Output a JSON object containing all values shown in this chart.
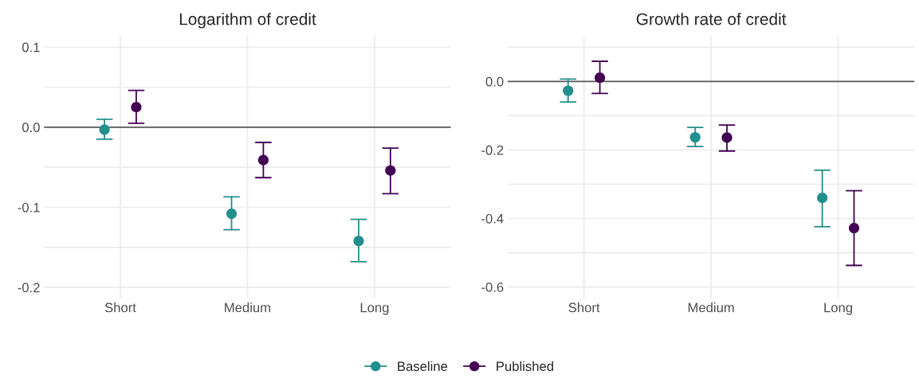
{
  "chart_data": [
    {
      "type": "scatter",
      "title": "Logarithm of credit",
      "categories": [
        "Short",
        "Medium",
        "Long"
      ],
      "ylim": [
        -0.214,
        0.114
      ],
      "yticks": [
        {
          "value": -0.2,
          "label": "-0.2"
        },
        {
          "value": -0.15,
          "label": null
        },
        {
          "value": -0.1,
          "label": "-0.1"
        },
        {
          "value": -0.05,
          "label": null
        },
        {
          "value": 0.0,
          "label": "0.0"
        },
        {
          "value": 0.05,
          "label": null
        },
        {
          "value": 0.1,
          "label": "0.1"
        }
      ],
      "grid": true,
      "legend": "bottom",
      "marker": "circle",
      "ref_lines": [
        {
          "axis": "y",
          "value": 0,
          "color": "#595959"
        }
      ],
      "series": [
        {
          "name": "Baseline",
          "color": "#21908c",
          "values": [
            -0.003,
            -0.108,
            -0.142
          ],
          "errors": [
            [
              -0.015,
              0.01
            ],
            [
              -0.128,
              -0.087
            ],
            [
              -0.168,
              -0.115
            ]
          ]
        },
        {
          "name": "Published",
          "color": "#440154",
          "values": [
            0.025,
            -0.041,
            -0.054
          ],
          "errors": [
            [
              0.005,
              0.046
            ],
            [
              -0.063,
              -0.019
            ],
            [
              -0.083,
              -0.026
            ]
          ]
        }
      ]
    },
    {
      "type": "scatter",
      "title": "Growth rate of credit",
      "categories": [
        "Short",
        "Medium",
        "Long"
      ],
      "ylim": [
        -0.634,
        0.133
      ],
      "yticks": [
        {
          "value": -0.6,
          "label": "-0.6"
        },
        {
          "value": -0.5,
          "label": null
        },
        {
          "value": -0.4,
          "label": "-0.4"
        },
        {
          "value": -0.3,
          "label": null
        },
        {
          "value": -0.2,
          "label": "-0.2"
        },
        {
          "value": -0.1,
          "label": null
        },
        {
          "value": 0.0,
          "label": "0.0"
        },
        {
          "value": 0.1,
          "label": null
        }
      ],
      "grid": true,
      "marker": "circle",
      "ref_lines": [
        {
          "axis": "y",
          "value": 0,
          "color": "#595959"
        }
      ],
      "series": [
        {
          "name": "Baseline",
          "color": "#21908c",
          "values": [
            -0.027,
            -0.163,
            -0.34
          ],
          "errors": [
            [
              -0.06,
              0.007
            ],
            [
              -0.19,
              -0.134
            ],
            [
              -0.424,
              -0.259
            ]
          ]
        },
        {
          "name": "Published",
          "color": "#440154",
          "values": [
            0.011,
            -0.164,
            -0.428
          ],
          "errors": [
            [
              -0.035,
              0.059
            ],
            [
              -0.203,
              -0.127
            ],
            [
              -0.537,
              -0.319
            ]
          ]
        }
      ]
    }
  ]
}
